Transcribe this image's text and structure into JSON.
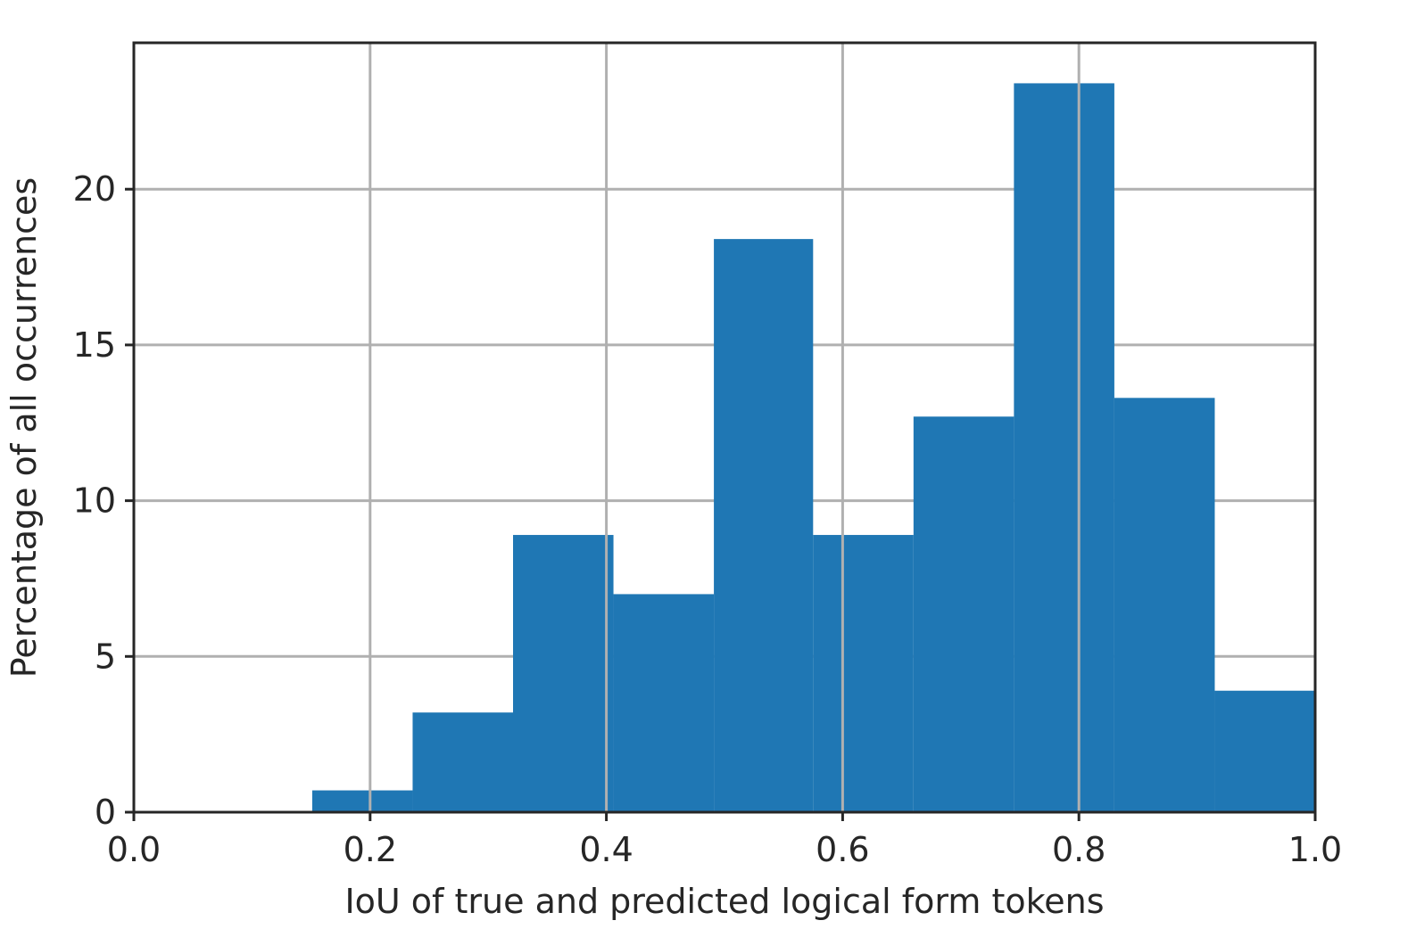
{
  "chart_data": {
    "type": "bar",
    "title": "",
    "xlabel": "IoU of true and predicted logical form tokens",
    "ylabel": "Percentage of all occurrences",
    "xlim": [
      0.0,
      1.0
    ],
    "ylim": [
      0,
      24.7
    ],
    "grid": true,
    "bar_color": "#1f77b4",
    "x_ticks": [
      0.0,
      0.2,
      0.4,
      0.6,
      0.8,
      1.0
    ],
    "x_tick_labels": [
      "0.0",
      "0.2",
      "0.4",
      "0.6",
      "0.8",
      "1.0"
    ],
    "y_ticks": [
      0,
      5,
      10,
      15,
      20
    ],
    "y_tick_labels": [
      "0",
      "5",
      "10",
      "15",
      "20"
    ],
    "bins": [
      {
        "x0": 0.151,
        "x1": 0.236,
        "value": 0.7
      },
      {
        "x0": 0.236,
        "x1": 0.321,
        "value": 3.2
      },
      {
        "x0": 0.321,
        "x1": 0.406,
        "value": 8.9
      },
      {
        "x0": 0.406,
        "x1": 0.491,
        "value": 7.0
      },
      {
        "x0": 0.491,
        "x1": 0.575,
        "value": 18.4
      },
      {
        "x0": 0.575,
        "x1": 0.66,
        "value": 8.9
      },
      {
        "x0": 0.66,
        "x1": 0.745,
        "value": 12.7
      },
      {
        "x0": 0.745,
        "x1": 0.83,
        "value": 23.4
      },
      {
        "x0": 0.83,
        "x1": 0.915,
        "value": 13.3
      },
      {
        "x0": 0.915,
        "x1": 1.0,
        "value": 3.9
      }
    ]
  }
}
